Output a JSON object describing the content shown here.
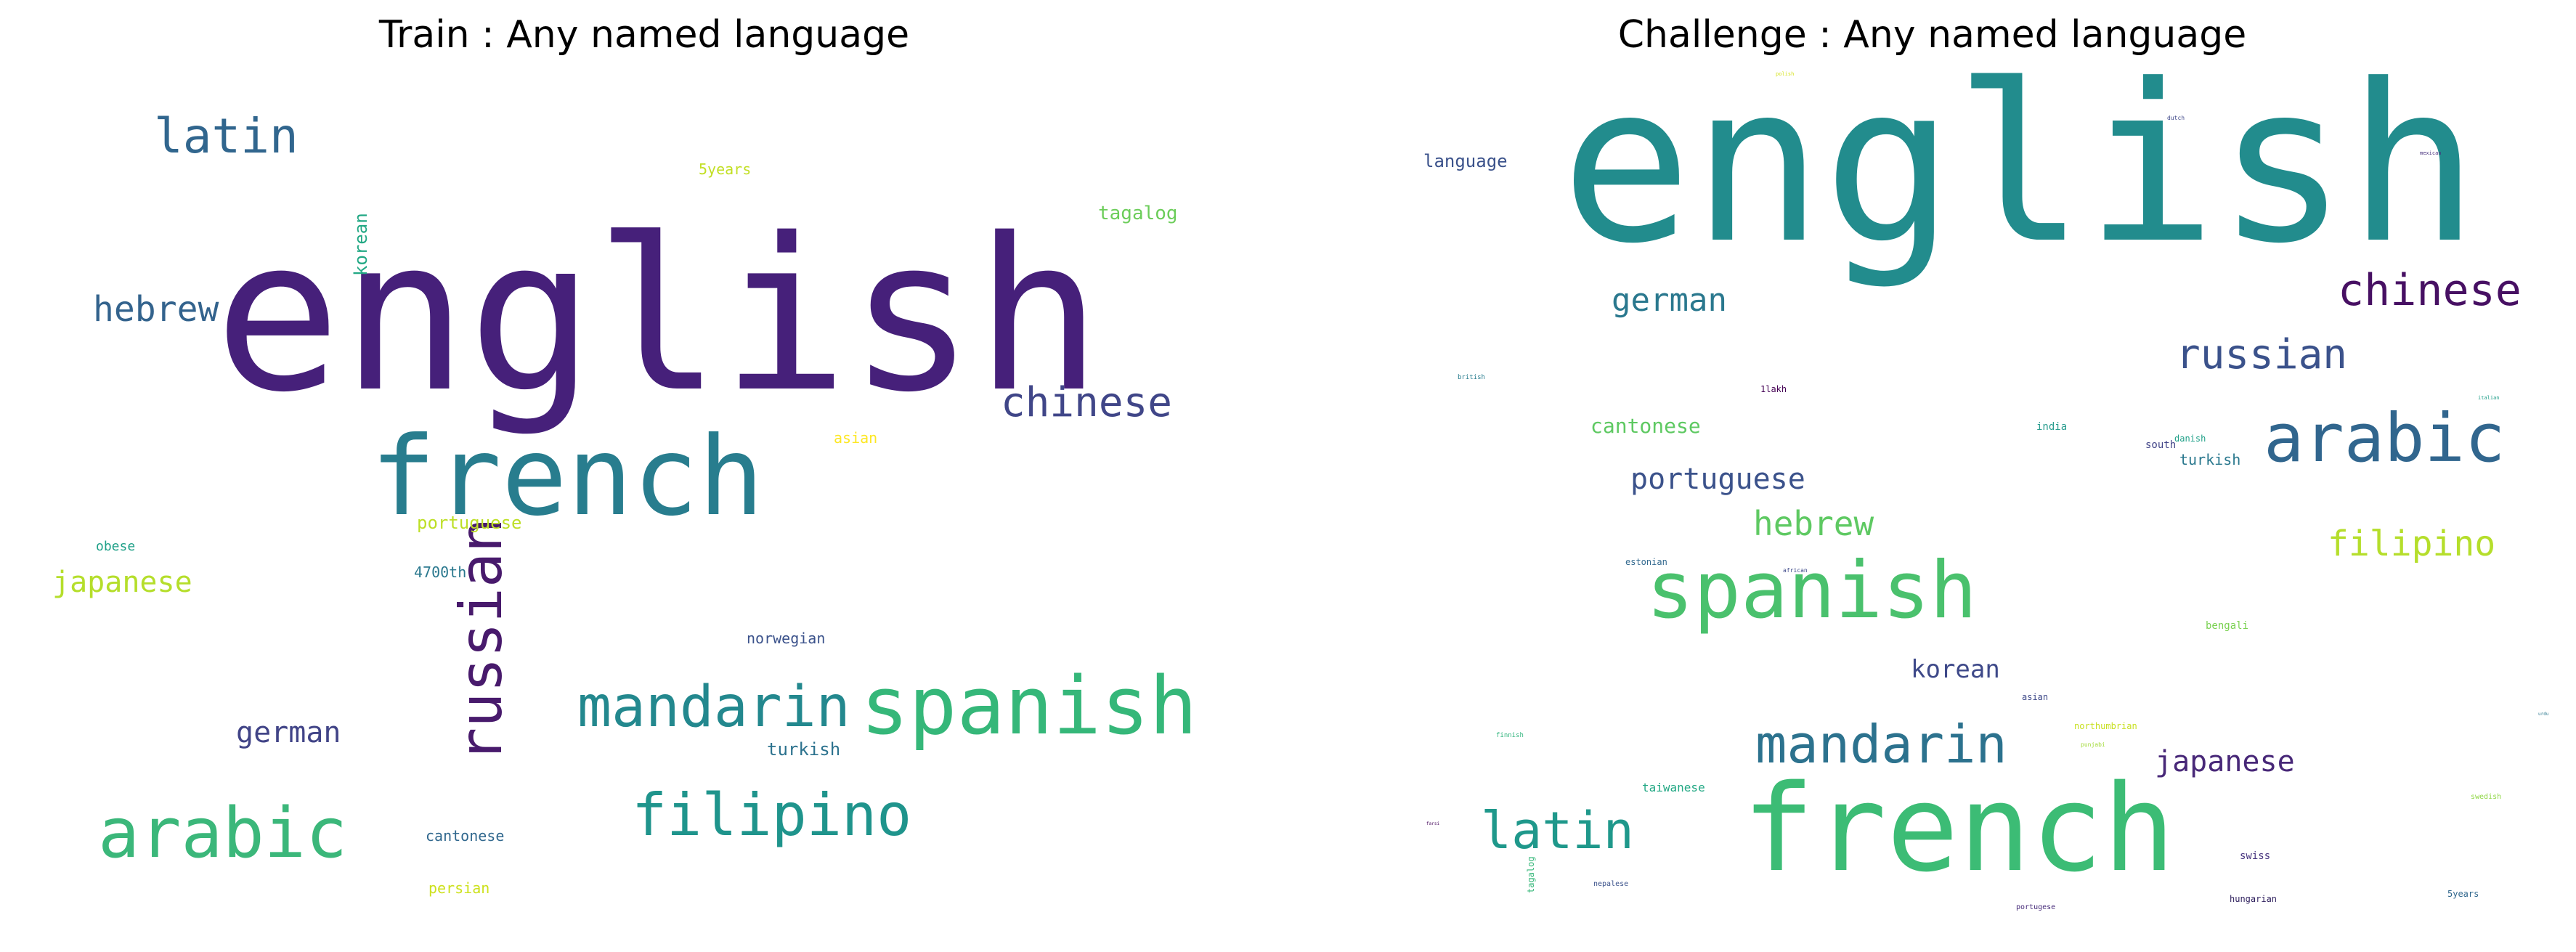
{
  "panels": [
    {
      "title": "Train : Any named language",
      "words": [
        {
          "text": "english",
          "color": "#46207a"
        },
        {
          "text": "french",
          "color": "#287d8e"
        },
        {
          "text": "spanish",
          "color": "#35b779"
        },
        {
          "text": "arabic",
          "color": "#3bb77a"
        },
        {
          "text": "mandarin",
          "color": "#23888e"
        },
        {
          "text": "filipino",
          "color": "#1f948c"
        },
        {
          "text": "russian",
          "color": "#481a6c"
        },
        {
          "text": "latin",
          "color": "#31668e"
        },
        {
          "text": "chinese",
          "color": "#404688"
        },
        {
          "text": "hebrew",
          "color": "#33638d"
        },
        {
          "text": "japanese",
          "color": "#b5de2b"
        },
        {
          "text": "german",
          "color": "#414487"
        },
        {
          "text": "tagalog",
          "color": "#6ccd5a"
        },
        {
          "text": "portuguese",
          "color": "#bddf26"
        },
        {
          "text": "korean",
          "color": "#22a884"
        },
        {
          "text": "5years",
          "color": "#c2df23"
        },
        {
          "text": "asian",
          "color": "#fde725"
        },
        {
          "text": "obese",
          "color": "#1fa088"
        },
        {
          "text": "4700th",
          "color": "#2a788e"
        },
        {
          "text": "norwegian",
          "color": "#3b528b"
        },
        {
          "text": "turkish",
          "color": "#2c728e"
        },
        {
          "text": "cantonese",
          "color": "#31688e"
        },
        {
          "text": "persian",
          "color": "#cde11d"
        }
      ]
    },
    {
      "title": "Challenge : Any named language",
      "words": [
        {
          "text": "english",
          "color": "#228c8d"
        },
        {
          "text": "french",
          "color": "#3cbc75"
        },
        {
          "text": "spanish",
          "color": "#4ac16d"
        },
        {
          "text": "arabic",
          "color": "#31668e"
        },
        {
          "text": "chinese",
          "color": "#471063"
        },
        {
          "text": "russian",
          "color": "#3b528b"
        },
        {
          "text": "mandarin",
          "color": "#2c728e"
        },
        {
          "text": "latin",
          "color": "#1f988b"
        },
        {
          "text": "german",
          "color": "#2a788e"
        },
        {
          "text": "portuguese",
          "color": "#3b528b"
        },
        {
          "text": "hebrew",
          "color": "#5ec962"
        },
        {
          "text": "filipino",
          "color": "#b5de2b"
        },
        {
          "text": "japanese",
          "color": "#482878"
        },
        {
          "text": "korean",
          "color": "#3e4989"
        },
        {
          "text": "cantonese",
          "color": "#5ec962"
        },
        {
          "text": "language",
          "color": "#3b528b"
        },
        {
          "text": "turkish",
          "color": "#2a788e"
        },
        {
          "text": "india",
          "color": "#2a9d8f"
        },
        {
          "text": "south",
          "color": "#414487"
        },
        {
          "text": "danish",
          "color": "#1fa088"
        },
        {
          "text": "1lakh",
          "color": "#440154"
        },
        {
          "text": "bengali",
          "color": "#7ad151"
        },
        {
          "text": "estonian",
          "color": "#31688e"
        },
        {
          "text": "asian",
          "color": "#3e4989"
        },
        {
          "text": "taiwanese",
          "color": "#22a884"
        },
        {
          "text": "swiss",
          "color": "#46337e"
        },
        {
          "text": "hungarian",
          "color": "#2d1e5c"
        },
        {
          "text": "5years",
          "color": "#31688e"
        },
        {
          "text": "swedish",
          "color": "#8fd744"
        },
        {
          "text": "northumbrian",
          "color": "#c8e020"
        },
        {
          "text": "nepalese",
          "color": "#3b528b"
        },
        {
          "text": "tagalog",
          "color": "#35b779"
        },
        {
          "text": "portugese",
          "color": "#472c7a"
        },
        {
          "text": "dutch",
          "color": "#3f4889"
        },
        {
          "text": "british",
          "color": "#287d8e"
        },
        {
          "text": "african",
          "color": "#3e4989"
        },
        {
          "text": "finnish",
          "color": "#2fb47c"
        },
        {
          "text": "mexican",
          "color": "#472f7d"
        },
        {
          "text": "italian",
          "color": "#1f9e89"
        },
        {
          "text": "punjabi",
          "color": "#a2da37"
        },
        {
          "text": "polish",
          "color": "#d5e21a"
        },
        {
          "text": "urdu",
          "color": "#2a788e"
        },
        {
          "text": "farsi",
          "color": "#46085c"
        }
      ]
    }
  ]
}
